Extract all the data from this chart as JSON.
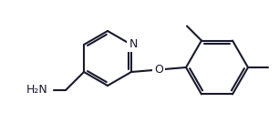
{
  "bg_color": "#ffffff",
  "line_color": "#1a1a2e",
  "line_width": 1.5,
  "font_size_label": 9,
  "N_label": "N",
  "O_label": "O",
  "NH2_label": "H₂N",
  "figw": 3.06,
  "figh": 1.46,
  "dpi": 100
}
